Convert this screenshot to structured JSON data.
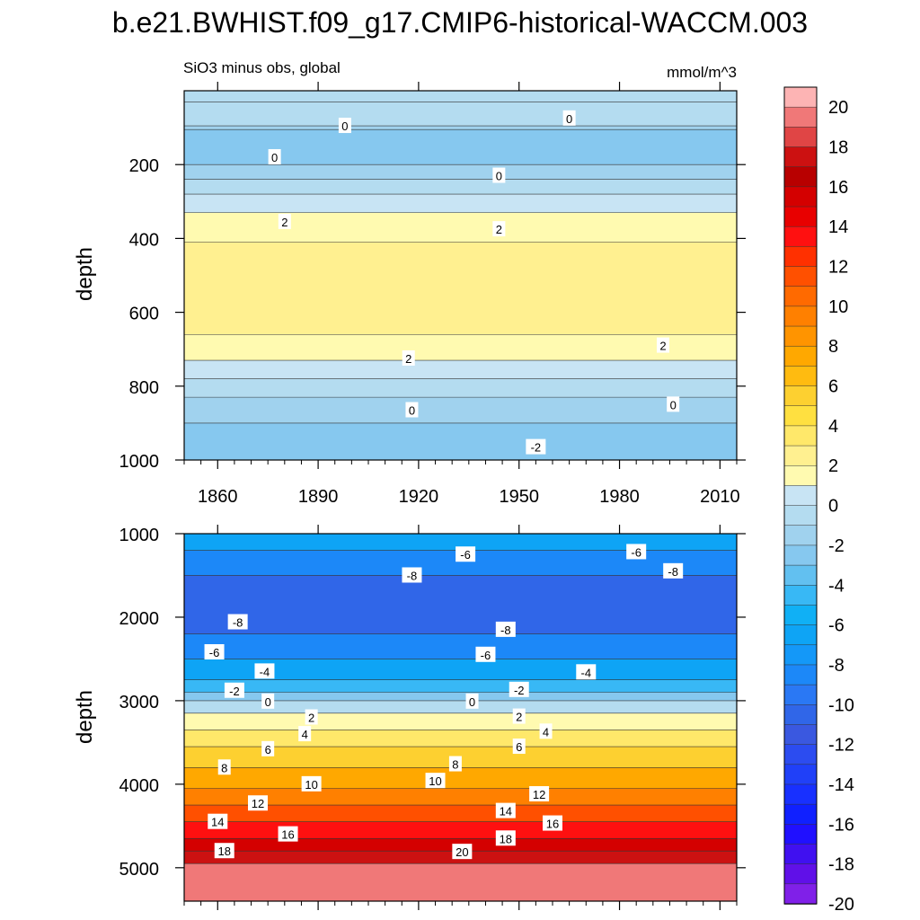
{
  "title": "b.e21.BWHIST.f09_g17.CMIP6-historical-WACCM.003",
  "chart_data": [
    {
      "type": "heatmap",
      "panel": "top",
      "subtitle_left": "SiO3 minus obs, global",
      "subtitle_right": "mmol/m^3",
      "ylabel": "depth",
      "xlim": [
        1850,
        2015
      ],
      "ylim": [
        1000,
        0
      ],
      "y_reversed": true,
      "xticks": [
        "1860",
        "1890",
        "1920",
        "1950",
        "1980",
        "2010"
      ],
      "xtick_values": [
        1860,
        1890,
        1920,
        1950,
        1980,
        2010
      ],
      "yticks": [
        "200",
        "400",
        "600",
        "800",
        "1000"
      ],
      "ytick_values": [
        200,
        400,
        600,
        800,
        1000
      ],
      "bands": [
        {
          "top": 0,
          "bottom": 30,
          "value": 1
        },
        {
          "top": 30,
          "bottom": 95,
          "value": 0.5
        },
        {
          "top": 95,
          "bottom": 105,
          "value": -0.5
        },
        {
          "top": 105,
          "bottom": 200,
          "value": -1
        },
        {
          "top": 200,
          "bottom": 240,
          "value": -0.5
        },
        {
          "top": 240,
          "bottom": 280,
          "value": 0.5
        },
        {
          "top": 280,
          "bottom": 330,
          "value": 1.5
        },
        {
          "top": 330,
          "bottom": 410,
          "value": 2.5
        },
        {
          "top": 410,
          "bottom": 660,
          "value": 3.5
        },
        {
          "top": 660,
          "bottom": 730,
          "value": 2.5
        },
        {
          "top": 730,
          "bottom": 780,
          "value": 1.5
        },
        {
          "top": 780,
          "bottom": 830,
          "value": 0.5
        },
        {
          "top": 830,
          "bottom": 900,
          "value": -0.5
        },
        {
          "top": 900,
          "bottom": 1000,
          "value": -1.5
        }
      ],
      "contour_labels": [
        {
          "x": 1898,
          "y": 95,
          "text": "0"
        },
        {
          "x": 1965,
          "y": 75,
          "text": "0"
        },
        {
          "x": 1877,
          "y": 180,
          "text": "0"
        },
        {
          "x": 1944,
          "y": 230,
          "text": "0"
        },
        {
          "x": 1880,
          "y": 355,
          "text": "2"
        },
        {
          "x": 1944,
          "y": 375,
          "text": "2"
        },
        {
          "x": 1917,
          "y": 725,
          "text": "2"
        },
        {
          "x": 1993,
          "y": 690,
          "text": "2"
        },
        {
          "x": 1918,
          "y": 865,
          "text": "0"
        },
        {
          "x": 1996,
          "y": 850,
          "text": "0"
        },
        {
          "x": 1955,
          "y": 965,
          "text": "-2"
        }
      ]
    },
    {
      "type": "heatmap",
      "panel": "bottom",
      "ylabel": "depth",
      "xlim": [
        1850,
        2015
      ],
      "ylim": [
        5400,
        1000
      ],
      "y_reversed": true,
      "yticks": [
        "1000",
        "2000",
        "3000",
        "4000",
        "5000"
      ],
      "ytick_values": [
        1000,
        2000,
        3000,
        4000,
        5000
      ],
      "bands": [
        {
          "top": 1000,
          "bottom": 1200,
          "value": -5
        },
        {
          "top": 1200,
          "bottom": 1500,
          "value": -7
        },
        {
          "top": 1500,
          "bottom": 2200,
          "value": -9
        },
        {
          "top": 2200,
          "bottom": 2500,
          "value": -7
        },
        {
          "top": 2500,
          "bottom": 2750,
          "value": -5
        },
        {
          "top": 2750,
          "bottom": 2900,
          "value": -3
        },
        {
          "top": 2900,
          "bottom": 3000,
          "value": -1
        },
        {
          "top": 3000,
          "bottom": 3150,
          "value": 1
        },
        {
          "top": 3150,
          "bottom": 3350,
          "value": 3
        },
        {
          "top": 3350,
          "bottom": 3550,
          "value": 5
        },
        {
          "top": 3550,
          "bottom": 3800,
          "value": 7
        },
        {
          "top": 3800,
          "bottom": 4050,
          "value": 9
        },
        {
          "top": 4050,
          "bottom": 4250,
          "value": 11
        },
        {
          "top": 4250,
          "bottom": 4450,
          "value": 13
        },
        {
          "top": 4450,
          "bottom": 4650,
          "value": 15
        },
        {
          "top": 4650,
          "bottom": 4800,
          "value": 17
        },
        {
          "top": 4800,
          "bottom": 4950,
          "value": 19
        },
        {
          "top": 4950,
          "bottom": 5400,
          "value": 21
        }
      ],
      "contour_labels": [
        {
          "x": 1934,
          "y": 1250,
          "text": "-6"
        },
        {
          "x": 1985,
          "y": 1220,
          "text": "-6"
        },
        {
          "x": 1918,
          "y": 1500,
          "text": "-8"
        },
        {
          "x": 1996,
          "y": 1450,
          "text": "-8"
        },
        {
          "x": 1866,
          "y": 2060,
          "text": "-8"
        },
        {
          "x": 1946,
          "y": 2150,
          "text": "-8"
        },
        {
          "x": 1859,
          "y": 2420,
          "text": "-6"
        },
        {
          "x": 1940,
          "y": 2450,
          "text": "-6"
        },
        {
          "x": 1874,
          "y": 2650,
          "text": "-4"
        },
        {
          "x": 1970,
          "y": 2660,
          "text": "-4"
        },
        {
          "x": 1865,
          "y": 2880,
          "text": "-2"
        },
        {
          "x": 1950,
          "y": 2870,
          "text": "-2"
        },
        {
          "x": 1875,
          "y": 3010,
          "text": "0"
        },
        {
          "x": 1936,
          "y": 3010,
          "text": "0"
        },
        {
          "x": 1888,
          "y": 3200,
          "text": "2"
        },
        {
          "x": 1950,
          "y": 3190,
          "text": "2"
        },
        {
          "x": 1886,
          "y": 3400,
          "text": "4"
        },
        {
          "x": 1958,
          "y": 3370,
          "text": "4"
        },
        {
          "x": 1875,
          "y": 3580,
          "text": "6"
        },
        {
          "x": 1950,
          "y": 3550,
          "text": "6"
        },
        {
          "x": 1862,
          "y": 3800,
          "text": "8"
        },
        {
          "x": 1931,
          "y": 3760,
          "text": "8"
        },
        {
          "x": 1888,
          "y": 4000,
          "text": "10"
        },
        {
          "x": 1925,
          "y": 3960,
          "text": "10"
        },
        {
          "x": 1872,
          "y": 4230,
          "text": "12"
        },
        {
          "x": 1956,
          "y": 4120,
          "text": "12"
        },
        {
          "x": 1860,
          "y": 4450,
          "text": "14"
        },
        {
          "x": 1946,
          "y": 4320,
          "text": "14"
        },
        {
          "x": 1881,
          "y": 4600,
          "text": "16"
        },
        {
          "x": 1960,
          "y": 4470,
          "text": "16"
        },
        {
          "x": 1862,
          "y": 4800,
          "text": "18"
        },
        {
          "x": 1946,
          "y": 4650,
          "text": "18"
        },
        {
          "x": 1933,
          "y": 4810,
          "text": "20"
        }
      ]
    }
  ],
  "colorbar": {
    "labels": [
      "20",
      "18",
      "16",
      "14",
      "12",
      "10",
      "8",
      "6",
      "4",
      "2",
      "0",
      "-2",
      "-4",
      "-6",
      "-8",
      "-10",
      "-12",
      "-14",
      "-16",
      "-18",
      "-20"
    ],
    "levels": [
      22,
      21,
      20,
      19,
      18,
      17,
      16,
      15,
      14,
      13,
      12,
      11,
      10,
      9,
      8,
      7,
      6,
      5,
      4,
      3,
      2,
      1,
      0,
      -1,
      -2,
      -3,
      -4,
      -5,
      -6,
      -7,
      -8,
      -9,
      -10,
      -11,
      -12,
      -13,
      -14,
      -15,
      -16,
      -17,
      -18,
      -19,
      -20,
      -21,
      -22
    ],
    "colors": [
      "#fdb4b4",
      "#f07878",
      "#e04545",
      "#cc1111",
      "#b80000",
      "#d40000",
      "#e80000",
      "#ff1010",
      "#ff3000",
      "#ff5000",
      "#ff6a00",
      "#ff8000",
      "#ff9400",
      "#ffa800",
      "#ffbb10",
      "#fdd030",
      "#ffe040",
      "#ffe86a",
      "#fff090",
      "#fffab0",
      "#c8e4f4",
      "#b4dcf0",
      "#a0d2ee",
      "#86c8ef",
      "#62c0f0",
      "#38b8f5",
      "#10b0f5",
      "#0ea4f5",
      "#1498f8",
      "#1c88f8",
      "#2a78f4",
      "#3066e8",
      "#3a58e0",
      "#2c4cf0",
      "#2040f8",
      "#1830ff",
      "#1020ff",
      "#2010ff",
      "#4010f0",
      "#6010e8",
      "#8020e8"
    ]
  }
}
